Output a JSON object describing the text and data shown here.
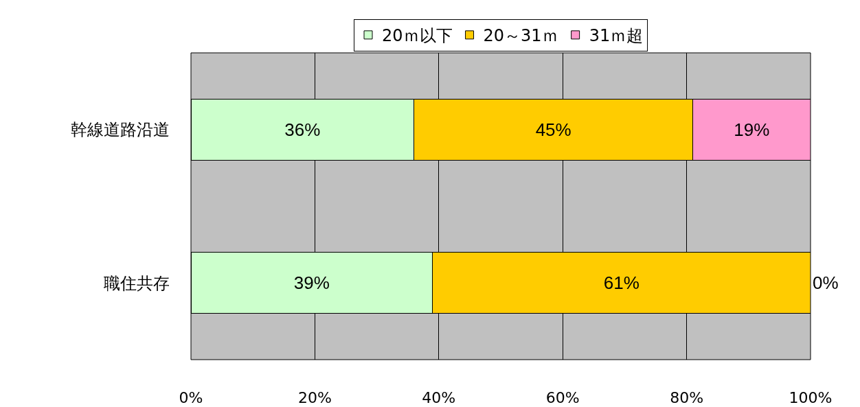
{
  "chart_data": {
    "type": "bar",
    "orientation": "horizontal",
    "stacked": true,
    "categories": [
      "幹線道路沿道",
      "職住共存"
    ],
    "series": [
      {
        "name": "20ｍ以下",
        "color": "#ccffcc",
        "values": [
          36,
          39
        ],
        "value_labels": [
          "36%",
          "39%"
        ]
      },
      {
        "name": "20～31ｍ",
        "color": "#ffcc00",
        "values": [
          45,
          61
        ],
        "value_labels": [
          "45%",
          "61%"
        ]
      },
      {
        "name": "31ｍ超",
        "color": "#ff99cc",
        "values": [
          19,
          0
        ],
        "value_labels": [
          "19%",
          "0%"
        ]
      }
    ],
    "xlim": [
      0,
      100
    ],
    "xticks": [
      {
        "value": 0,
        "label": "0%"
      },
      {
        "value": 20,
        "label": "20%"
      },
      {
        "value": 40,
        "label": "40%"
      },
      {
        "value": 60,
        "label": "60%"
      },
      {
        "value": 80,
        "label": "80%"
      },
      {
        "value": 100,
        "label": "100%"
      }
    ],
    "grid": "x",
    "legend": "top"
  }
}
